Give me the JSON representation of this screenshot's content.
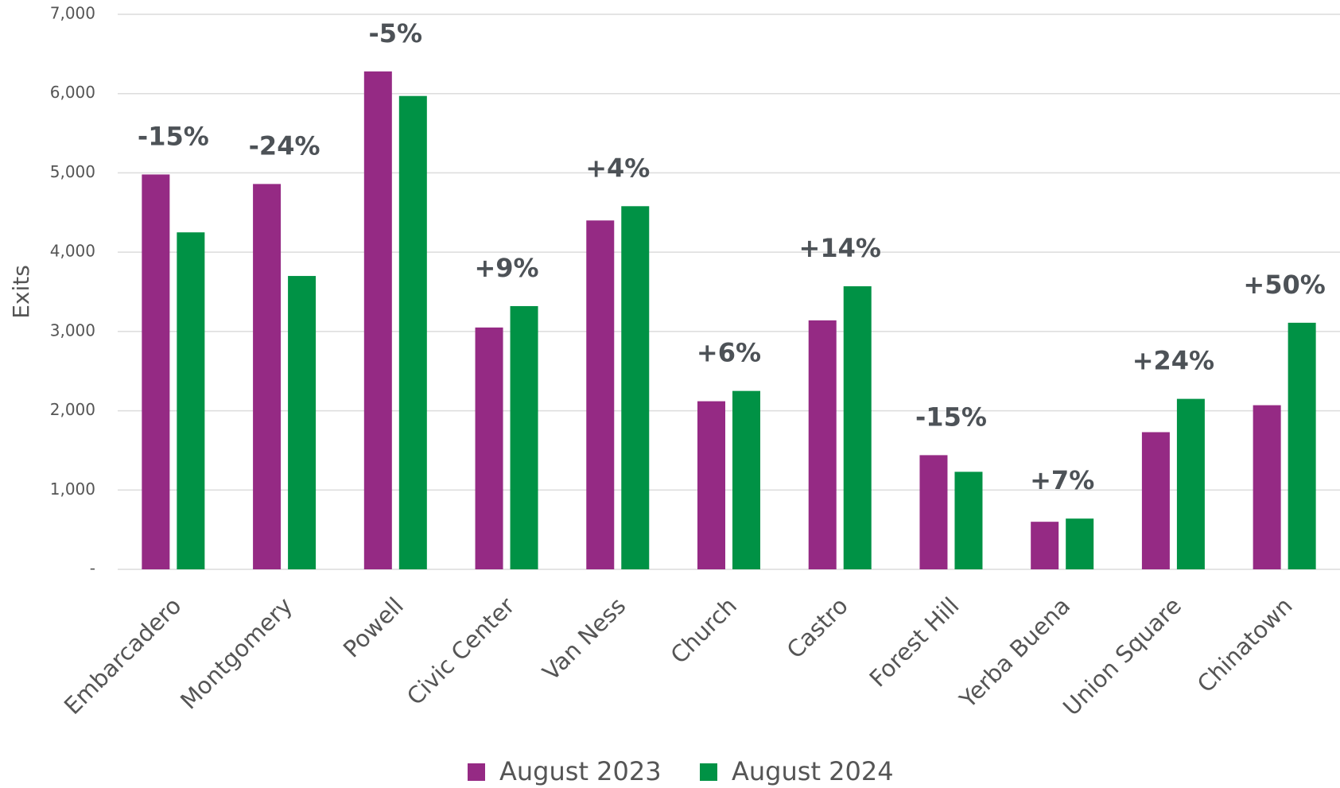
{
  "chart_data": {
    "type": "bar",
    "y_label": "Exits",
    "categories": [
      "Embarcadero",
      "Montgomery",
      "Powell",
      "Civic Center",
      "Van Ness",
      "Church",
      "Castro",
      "Forest Hill",
      "Yerba Buena",
      "Union Square",
      "Chinatown"
    ],
    "series": [
      {
        "name": "August 2023",
        "color": "#952a84",
        "values": [
          4980,
          4860,
          6280,
          3050,
          4400,
          2120,
          3140,
          1440,
          600,
          1730,
          2070
        ]
      },
      {
        "name": "August 2024",
        "color": "#009245",
        "values": [
          4250,
          3700,
          5970,
          3320,
          4580,
          2250,
          3570,
          1230,
          640,
          2150,
          3110
        ]
      }
    ],
    "annotations": [
      "-15%",
      "-24%",
      "-5%",
      "+9%",
      "+4%",
      "+6%",
      "+14%",
      "-15%",
      "+7%",
      "+24%",
      "+50%"
    ],
    "ylim": [
      0,
      7000
    ],
    "yticks": [
      {
        "value": 0,
        "label": "-"
      },
      {
        "value": 1000,
        "label": "1,000"
      },
      {
        "value": 2000,
        "label": "2,000"
      },
      {
        "value": 3000,
        "label": "3,000"
      },
      {
        "value": 4000,
        "label": "4,000"
      },
      {
        "value": 5000,
        "label": "5,000"
      },
      {
        "value": 6000,
        "label": "6,000"
      },
      {
        "value": 7000,
        "label": "7,000"
      }
    ],
    "grid": true,
    "legend": "bottom"
  }
}
